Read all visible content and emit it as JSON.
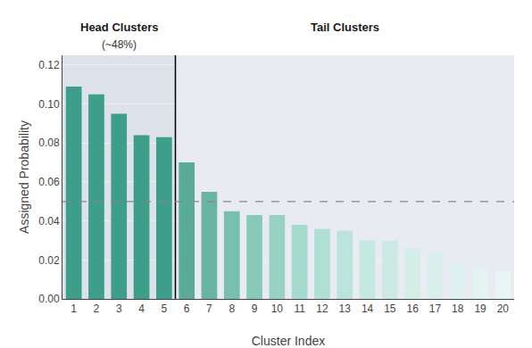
{
  "chart_data": {
    "type": "bar",
    "categories": [
      "1",
      "2",
      "3",
      "4",
      "5",
      "6",
      "7",
      "8",
      "9",
      "10",
      "11",
      "12",
      "13",
      "14",
      "15",
      "16",
      "17",
      "18",
      "19",
      "20"
    ],
    "values": [
      0.109,
      0.105,
      0.095,
      0.084,
      0.083,
      0.07,
      0.055,
      0.045,
      0.043,
      0.043,
      0.038,
      0.036,
      0.035,
      0.03,
      0.03,
      0.026,
      0.024,
      0.019,
      0.016,
      0.014
    ],
    "colors": [
      "#3d9e8c",
      "#3d9e8c",
      "#3d9e8c",
      "#3d9e8c",
      "#3d9e8c",
      "#5aab98",
      "#68b5a3",
      "#78bfad",
      "#88c9b8",
      "#97d2c2",
      "#a5dbcc",
      "#b0e0d4",
      "#bbe5da",
      "#c4e9df",
      "#cceae3",
      "#d3ede7",
      "#d9efeb",
      "#dff1ee",
      "#e4f3f1",
      "#e8f5f3"
    ],
    "xlabel": "Cluster Index",
    "ylabel": "Assigned Probability",
    "ylim": [
      0,
      0.125
    ],
    "yticks": [
      {
        "value": 0,
        "label": "0.00"
      },
      0.02,
      0.04,
      0.06,
      0.08,
      {
        "value": 0.1,
        "label": "0.10"
      },
      0.12
    ],
    "grid": true,
    "hline": 0.05,
    "groups": [
      {
        "label": "Head Clusters",
        "sublabel": "(~48%)",
        "count": 5,
        "color": "#dde1ea"
      },
      {
        "label": "Tail Clusters",
        "count": 15,
        "color": "#e8ebf2"
      }
    ]
  }
}
